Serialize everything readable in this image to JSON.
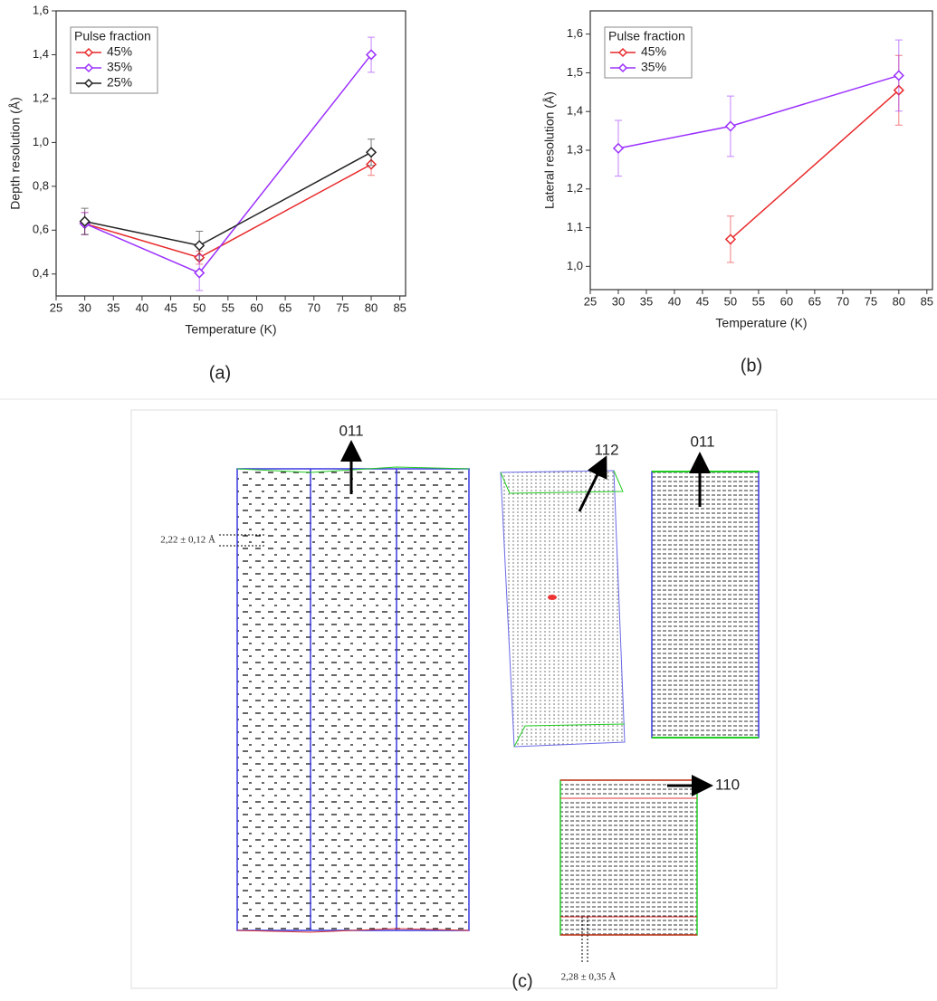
{
  "chart_data": [
    {
      "type": "line",
      "x_label": "Temperature (K)",
      "y_label": "Depth resolution (Å)",
      "x": [
        30,
        50,
        80
      ],
      "xlim": [
        25,
        86
      ],
      "xticks": [
        25,
        30,
        35,
        40,
        45,
        50,
        55,
        60,
        65,
        70,
        75,
        80,
        85
      ],
      "ylim": [
        0.3,
        1.6
      ],
      "yticks": [
        {
          "value": 0.4,
          "label": "0,4"
        },
        {
          "value": 0.6,
          "label": "0,6"
        },
        {
          "value": 0.8,
          "label": "0,8"
        },
        {
          "value": 1.0,
          "label": "1,0"
        },
        {
          "value": 1.2,
          "label": "1,2"
        },
        {
          "value": 1.4,
          "label": "1,4"
        },
        {
          "value": 1.6,
          "label": "1,6"
        }
      ],
      "legend_title": "Pulse fraction",
      "legend": "top-left",
      "series": [
        {
          "name": "45%",
          "color": "#e8292b",
          "values": [
            0.63,
            0.475,
            0.9
          ],
          "errors": [
            0.05,
            0.03,
            0.05
          ]
        },
        {
          "name": "35%",
          "color": "#9b30ff",
          "values": [
            0.63,
            0.405,
            1.4
          ],
          "errors": [
            0.05,
            0.08,
            0.08
          ]
        },
        {
          "name": "25%",
          "color": "#222222",
          "values": [
            0.64,
            0.53,
            0.955
          ],
          "errors": [
            0.06,
            0.065,
            0.06
          ]
        }
      ]
    },
    {
      "type": "line",
      "x_label": "Temperature (K)",
      "y_label": "Lateral resolution (Å)",
      "x": [
        30,
        50,
        80
      ],
      "xlim": [
        25,
        86
      ],
      "xticks": [
        25,
        30,
        35,
        40,
        45,
        50,
        55,
        60,
        65,
        70,
        75,
        80,
        85
      ],
      "ylim": [
        0.94,
        1.66
      ],
      "yticks": [
        {
          "value": 1.0,
          "label": "1,0"
        },
        {
          "value": 1.1,
          "label": "1,1"
        },
        {
          "value": 1.2,
          "label": "1,2"
        },
        {
          "value": 1.3,
          "label": "1,3"
        },
        {
          "value": 1.4,
          "label": "1,4"
        },
        {
          "value": 1.5,
          "label": "1,5"
        },
        {
          "value": 1.6,
          "label": "1,6"
        }
      ],
      "legend_title": "Pulse fraction",
      "legend": "top-left",
      "series": [
        {
          "name": "45%",
          "color": "#e8292b",
          "values": [
            null,
            1.07,
            1.455
          ],
          "errors": [
            null,
            0.06,
            0.09
          ]
        },
        {
          "name": "35%",
          "color": "#9b30ff",
          "values": [
            1.305,
            1.362,
            1.493
          ],
          "errors": [
            0.072,
            0.078,
            0.092
          ]
        }
      ]
    }
  ],
  "panel_labels": [
    "(a)",
    "(b)",
    "(c)"
  ],
  "reconstruction": {
    "directions": [
      "011",
      "112",
      "011",
      "110"
    ],
    "spacings": [
      "2,22 ± 0,12 Å",
      "2,28 ± 0,35 Å"
    ]
  }
}
